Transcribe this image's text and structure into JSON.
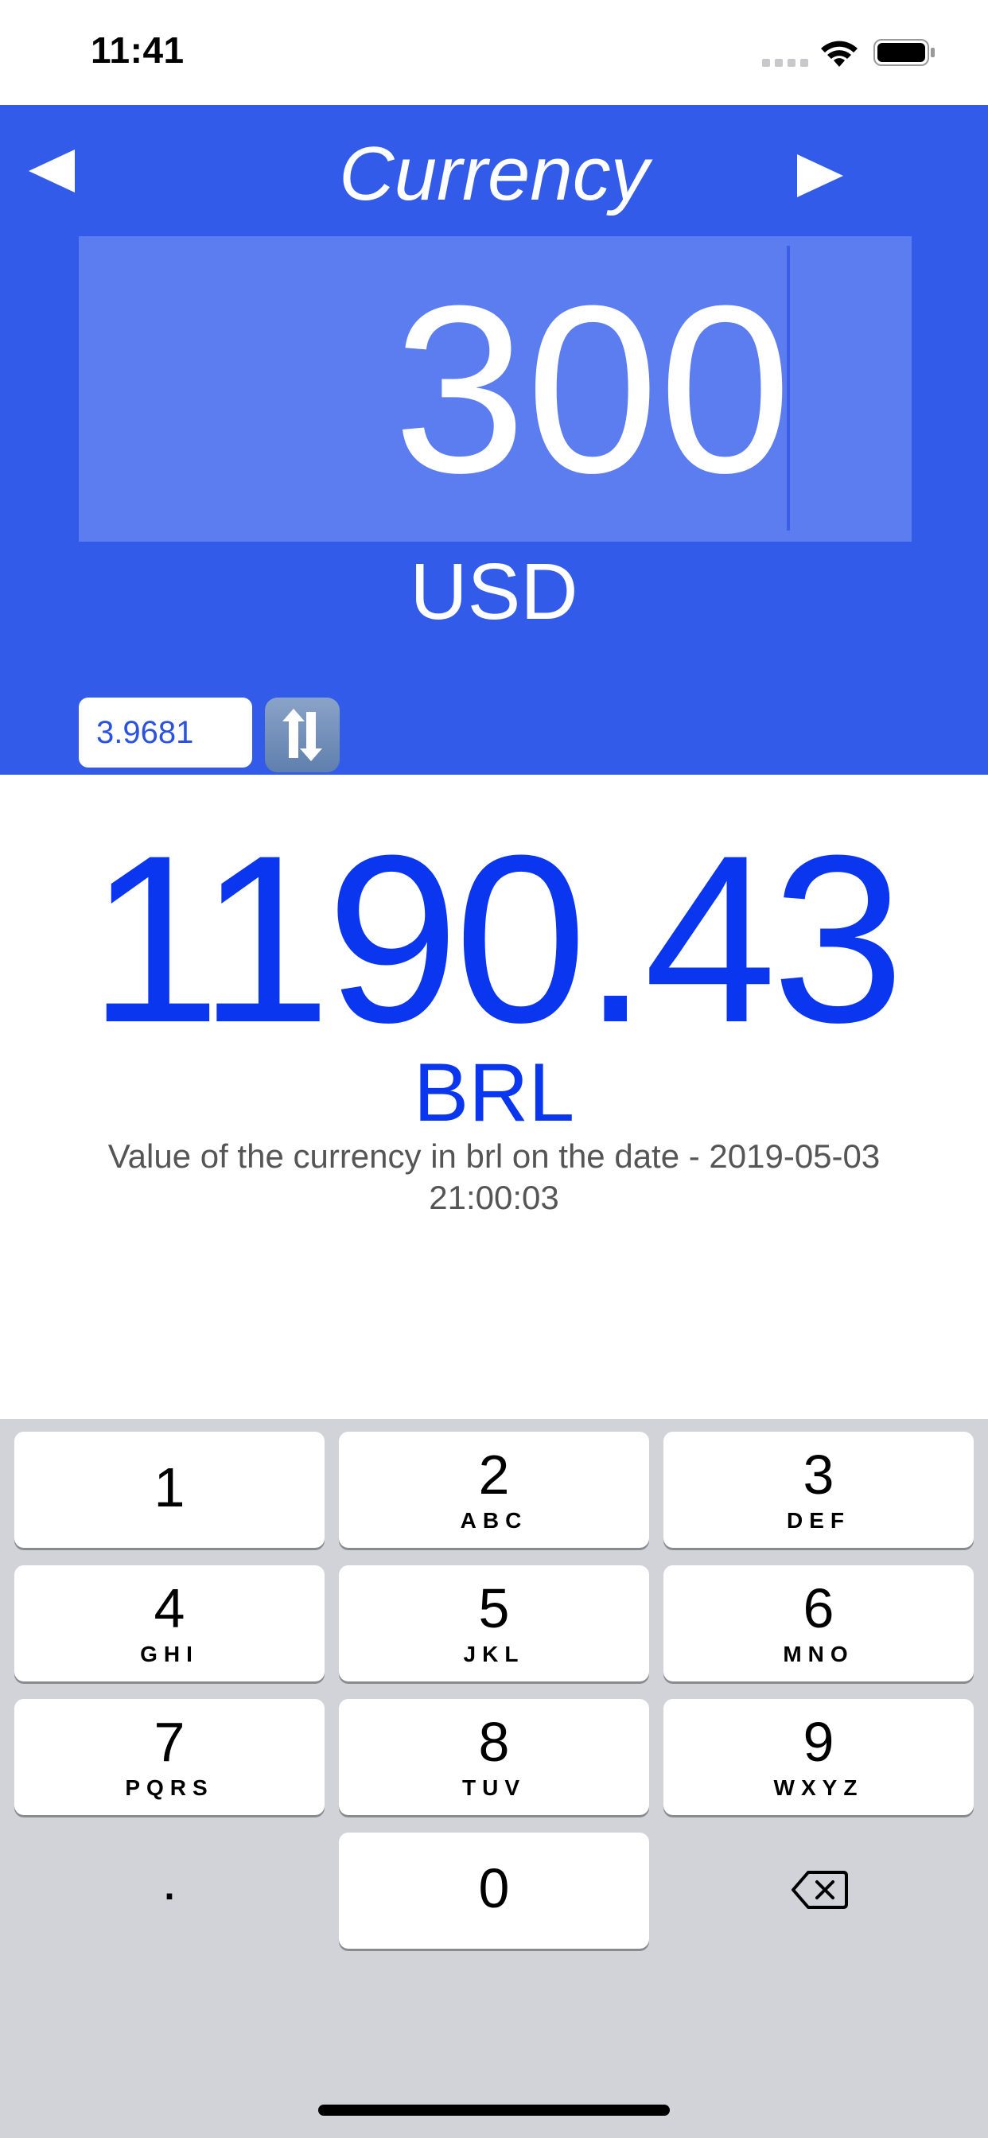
{
  "status_bar": {
    "time": "11:41"
  },
  "header": {
    "title": "Currency",
    "amount": "300",
    "from_currency": "USD",
    "rate": "3.9681",
    "background_color": "#325bea"
  },
  "result": {
    "value": "1190.43",
    "currency": "BRL",
    "note": "Value of the currency in brl on the date - 2019-05-03 21:00:03",
    "color": "#0b36f0"
  },
  "keyboard": {
    "keys": [
      {
        "digit": "1",
        "letters": ""
      },
      {
        "digit": "2",
        "letters": "ABC"
      },
      {
        "digit": "3",
        "letters": "DEF"
      },
      {
        "digit": "4",
        "letters": "GHI"
      },
      {
        "digit": "5",
        "letters": "JKL"
      },
      {
        "digit": "6",
        "letters": "MNO"
      },
      {
        "digit": "7",
        "letters": "PQRS"
      },
      {
        "digit": "8",
        "letters": "TUV"
      },
      {
        "digit": "9",
        "letters": "WXYZ"
      },
      {
        "digit": "0",
        "letters": ""
      }
    ],
    "decimal": ".",
    "delete_icon": "backspace-icon"
  }
}
